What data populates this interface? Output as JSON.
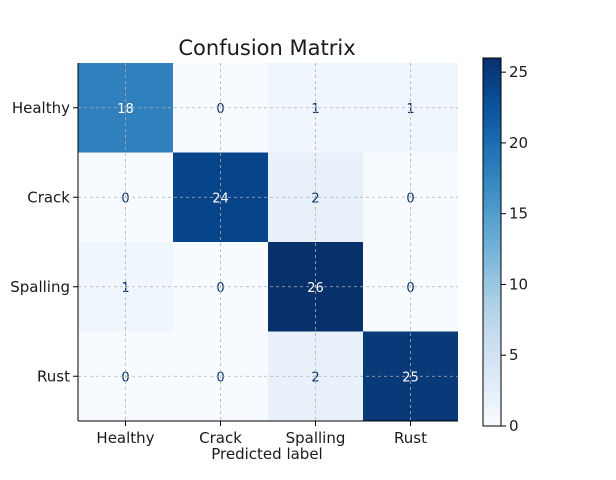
{
  "chart_data": {
    "type": "heatmap",
    "title": "Confusion Matrix",
    "xlabel": "Predicted label",
    "ylabel": "",
    "x_categories": [
      "Healthy",
      "Crack",
      "Spalling",
      "Rust"
    ],
    "y_categories": [
      "Healthy",
      "Crack",
      "Spalling",
      "Rust"
    ],
    "values": [
      [
        18,
        0,
        1,
        1
      ],
      [
        0,
        24,
        2,
        0
      ],
      [
        1,
        0,
        26,
        0
      ],
      [
        0,
        0,
        2,
        25
      ]
    ],
    "colorscale": "Blues",
    "value_range": [
      0,
      26
    ],
    "colorbar_ticks": [
      0,
      5,
      10,
      15,
      20,
      25
    ],
    "grid": true,
    "colorbar_position": "right"
  }
}
